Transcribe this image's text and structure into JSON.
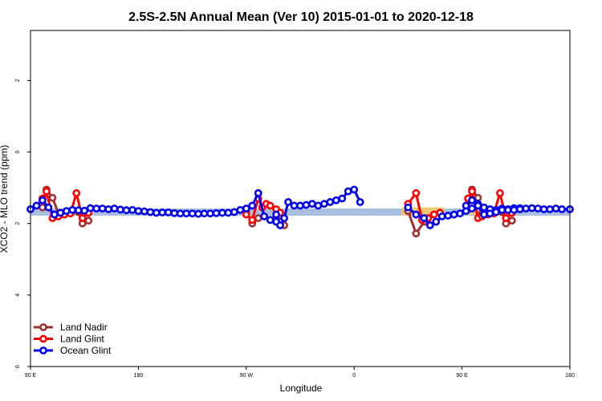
{
  "chart_data": {
    "type": "line",
    "title": "2.5S-2.5N Annual Mean (Ver 10)   2015-01-01 to 2020-12-18",
    "xlabel": "Longitude",
    "ylabel": "XCO2 - MLO trend (ppm)",
    "xlim": [
      -90,
      180
    ],
    "ylim": [
      -6.0,
      3.4
    ],
    "x_ticks": [
      {
        "value": -90,
        "label": "90 E"
      },
      {
        "value": -36,
        "label": "180"
      },
      {
        "value": 18,
        "label": "90 W"
      },
      {
        "value": 72,
        "label": "0"
      },
      {
        "value": 126,
        "label": "90 E"
      },
      {
        "value": 180,
        "label": "180"
      }
    ],
    "y_ticks": [
      {
        "value": 2,
        "label": "2"
      },
      {
        "value": 0,
        "label": "0"
      },
      {
        "value": -2,
        "label": "2"
      },
      {
        "value": -4,
        "label": "4"
      },
      {
        "value": -6,
        "label": "6"
      }
    ],
    "bands": [
      {
        "name": "ocean",
        "color": "#a9bfdf",
        "x0": -90,
        "x1": 180,
        "y0": -1.78,
        "y1": -1.58
      },
      {
        "name": "land-south-america",
        "color": "#f0c870",
        "x0": 16,
        "x1": 20,
        "y0": -1.78,
        "y1": -1.55
      },
      {
        "name": "land-africa",
        "color": "#f0c870",
        "x0": 96,
        "x1": 117,
        "y0": -1.78,
        "y1": -1.55
      },
      {
        "name": "land-asia",
        "color": "#f0c870",
        "x0": 128,
        "x1": 133,
        "y0": -1.75,
        "y1": -1.55
      }
    ],
    "series": [
      {
        "name": "Land Nadir",
        "color": "#a03030",
        "segments": [
          [
            [
              -84,
              -1.55
            ],
            [
              -82,
              -1.05
            ],
            [
              -79,
              -1.28
            ],
            [
              -76,
              -1.72
            ]
          ],
          [
            [
              -66,
              -1.68
            ],
            [
              -64,
              -2.0
            ],
            [
              -61,
              -1.92
            ]
          ],
          [
            [
              18,
              -1.65
            ],
            [
              21,
              -2.0
            ],
            [
              24,
              -1.85
            ]
          ],
          [
            [
              33,
              -1.8
            ],
            [
              35,
              -1.95
            ],
            [
              37,
              -2.05
            ]
          ],
          [
            [
              99,
              -1.65
            ],
            [
              103,
              -2.28
            ],
            [
              107,
              -1.95
            ]
          ],
          [
            [
              129,
              -1.6
            ],
            [
              131,
              -1.05
            ],
            [
              134,
              -1.28
            ],
            [
              136,
              -1.72
            ]
          ],
          [
            [
              146,
              -1.68
            ],
            [
              148,
              -2.0
            ],
            [
              151,
              -1.92
            ]
          ]
        ]
      },
      {
        "name": "Land Glint",
        "color": "#ff0000",
        "segments": [
          [
            [
              -84,
              -1.3
            ],
            [
              -82,
              -1.1
            ],
            [
              -79,
              -1.85
            ],
            [
              -76,
              -1.8
            ],
            [
              -73,
              -1.75
            ],
            [
              -70,
              -1.72
            ],
            [
              -67,
              -1.15
            ],
            [
              -64,
              -1.85
            ],
            [
              -61,
              -1.7
            ]
          ],
          [
            [
              18,
              -1.75
            ],
            [
              21,
              -1.9
            ],
            [
              24,
              -1.3
            ],
            [
              26,
              -1.55
            ],
            [
              28,
              -1.45
            ],
            [
              30,
              -1.5
            ],
            [
              33,
              -1.6
            ],
            [
              35,
              -1.7
            ]
          ],
          [
            [
              99,
              -1.45
            ],
            [
              103,
              -1.15
            ],
            [
              106,
              -1.9
            ],
            [
              109,
              -1.85
            ],
            [
              112,
              -1.75
            ],
            [
              115,
              -1.7
            ]
          ],
          [
            [
              129,
              -1.3
            ],
            [
              131,
              -1.1
            ],
            [
              134,
              -1.85
            ],
            [
              136,
              -1.8
            ],
            [
              139,
              -1.75
            ],
            [
              142,
              -1.72
            ],
            [
              145,
              -1.15
            ],
            [
              148,
              -1.85
            ],
            [
              151,
              -1.7
            ]
          ]
        ]
      },
      {
        "name": "Ocean Glint",
        "color": "#0000ee",
        "segments": [
          [
            [
              -90,
              -1.6
            ],
            [
              -87,
              -1.5
            ],
            [
              -84,
              -1.35
            ],
            [
              -81,
              -1.55
            ],
            [
              -78,
              -1.75
            ],
            [
              -75,
              -1.7
            ],
            [
              -72,
              -1.65
            ],
            [
              -69,
              -1.62
            ],
            [
              -66,
              -1.63
            ],
            [
              -63,
              -1.64
            ],
            [
              -60,
              -1.57
            ],
            [
              -57,
              -1.58
            ],
            [
              -54,
              -1.58
            ],
            [
              -51,
              -1.6
            ],
            [
              -48,
              -1.58
            ],
            [
              -45,
              -1.61
            ],
            [
              -42,
              -1.63
            ],
            [
              -39,
              -1.62
            ],
            [
              -36,
              -1.65
            ],
            [
              -33,
              -1.66
            ],
            [
              -30,
              -1.68
            ],
            [
              -27,
              -1.7
            ],
            [
              -24,
              -1.69
            ],
            [
              -21,
              -1.69
            ],
            [
              -18,
              -1.71
            ],
            [
              -15,
              -1.72
            ],
            [
              -12,
              -1.72
            ],
            [
              -9,
              -1.72
            ],
            [
              -6,
              -1.73
            ],
            [
              -3,
              -1.72
            ],
            [
              0,
              -1.72
            ],
            [
              3,
              -1.71
            ],
            [
              6,
              -1.7
            ],
            [
              9,
              -1.7
            ],
            [
              12,
              -1.68
            ],
            [
              15,
              -1.62
            ],
            [
              18,
              -1.58
            ],
            [
              21,
              -1.5
            ],
            [
              24,
              -1.15
            ],
            [
              27,
              -1.8
            ],
            [
              30,
              -1.9
            ],
            [
              33,
              -1.95
            ]
          ],
          [
            [
              33,
              -1.75
            ],
            [
              35,
              -2.05
            ],
            [
              37,
              -1.85
            ],
            [
              39,
              -1.4
            ],
            [
              42,
              -1.5
            ],
            [
              45,
              -1.5
            ],
            [
              48,
              -1.48
            ],
            [
              51,
              -1.45
            ],
            [
              54,
              -1.5
            ],
            [
              57,
              -1.45
            ],
            [
              60,
              -1.4
            ],
            [
              63,
              -1.35
            ],
            [
              66,
              -1.3
            ],
            [
              69,
              -1.1
            ],
            [
              72,
              -1.05
            ],
            [
              75,
              -1.4
            ]
          ],
          [
            [
              99,
              -1.55
            ],
            [
              103,
              -1.75
            ],
            [
              107,
              -1.85
            ],
            [
              110,
              -2.05
            ],
            [
              113,
              -1.95
            ],
            [
              116,
              -1.8
            ],
            [
              119,
              -1.78
            ],
            [
              122,
              -1.75
            ],
            [
              125,
              -1.72
            ],
            [
              128,
              -1.65
            ],
            [
              131,
              -1.58
            ],
            [
              134,
              -1.45
            ],
            [
              137,
              -1.55
            ],
            [
              140,
              -1.6
            ],
            [
              143,
              -1.62
            ],
            [
              146,
              -1.58
            ],
            [
              149,
              -1.6
            ],
            [
              152,
              -1.57
            ],
            [
              155,
              -1.57
            ],
            [
              158,
              -1.58
            ],
            [
              161,
              -1.57
            ],
            [
              164,
              -1.58
            ],
            [
              167,
              -1.6
            ],
            [
              170,
              -1.6
            ],
            [
              173,
              -1.58
            ],
            [
              176,
              -1.6
            ],
            [
              180,
              -1.6
            ]
          ],
          [
            [
              128,
              -1.5
            ],
            [
              131,
              -1.35
            ],
            [
              134,
              -1.5
            ],
            [
              137,
              -1.75
            ],
            [
              140,
              -1.72
            ],
            [
              143,
              -1.68
            ],
            [
              146,
              -1.62
            ],
            [
              149,
              -1.62
            ],
            [
              152,
              -1.62
            ],
            [
              155,
              -1.6
            ]
          ]
        ]
      }
    ],
    "legend": {
      "position": "bottom-left",
      "entries": [
        "Land Nadir",
        "Land Glint",
        "Ocean Glint"
      ]
    }
  }
}
